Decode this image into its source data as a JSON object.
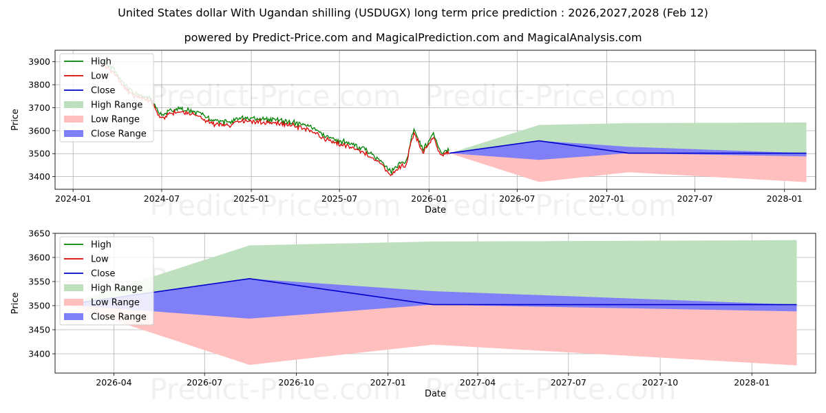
{
  "titles": {
    "main": "United States dollar With Ugandan shilling (USDUGX) long term price prediction : 2026,2027,2028 (Feb 12)",
    "sub": "powered by Predict-Price.com and MagicalPrediction.com and MagicalAnalysis.com"
  },
  "watermark": "Predict-Price.com",
  "colors": {
    "high": "#008000",
    "low": "#dd0000",
    "close": "#0000cc",
    "high_range": "#bfe0bf",
    "low_range": "#ffbfbf",
    "close_range": "#7f7ff8",
    "grid": "#b0b0b0"
  },
  "chart_data": [
    {
      "type": "line",
      "panel": "top",
      "xlabel": "Date",
      "ylabel": "Price",
      "xlim": [
        "2023-11-25",
        "2028-03-05"
      ],
      "ylim": [
        3345,
        3950
      ],
      "x_ticks": [
        "2024-01",
        "2024-07",
        "2025-01",
        "2025-07",
        "2026-01",
        "2026-07",
        "2027-01",
        "2027-07",
        "2028-01"
      ],
      "y_ticks": [
        3400,
        3500,
        3600,
        3700,
        3800,
        3900
      ],
      "grid": true,
      "legend": {
        "position": "top-left",
        "entries": [
          "High",
          "Low",
          "Close",
          "High Range",
          "Low Range",
          "Close Range"
        ]
      },
      "history_anchors": {
        "dates": [
          "2024-03-01",
          "2024-03-25",
          "2024-04-20",
          "2024-05-15",
          "2024-06-10",
          "2024-06-30",
          "2024-08-01",
          "2024-09-01",
          "2024-10-10",
          "2024-11-15",
          "2024-12-20",
          "2025-01-20",
          "2025-03-01",
          "2025-04-15",
          "2025-05-10",
          "2025-06-01",
          "2025-07-01",
          "2025-08-01",
          "2025-09-01",
          "2025-09-25",
          "2025-10-15",
          "2025-11-01",
          "2025-11-15",
          "2025-12-01",
          "2025-12-20",
          "2026-01-10",
          "2026-01-25",
          "2026-02-12"
        ],
        "values": [
          3900,
          3860,
          3780,
          3750,
          3730,
          3660,
          3690,
          3680,
          3640,
          3630,
          3650,
          3645,
          3640,
          3620,
          3600,
          3570,
          3550,
          3530,
          3500,
          3460,
          3410,
          3450,
          3460,
          3600,
          3510,
          3580,
          3500,
          3510
        ]
      },
      "forecast": {
        "dates": [
          "2026-02-12",
          "2026-08-15",
          "2027-02-15",
          "2028-02-15"
        ],
        "close": [
          3502,
          3556,
          3502,
          3502
        ],
        "high_range": [
          3502,
          3625,
          3633,
          3636
        ],
        "low_range": [
          3502,
          3377,
          3419,
          3376
        ],
        "close_range_upper": [
          3502,
          3556,
          3530,
          3502
        ],
        "close_range_lower": [
          3502,
          3473,
          3502,
          3488
        ]
      }
    },
    {
      "type": "line",
      "panel": "bottom",
      "xlabel": "Date",
      "ylabel": "Price",
      "xlim": [
        "2026-02-01",
        "2028-03-05"
      ],
      "ylim": [
        3360,
        3650
      ],
      "x_ticks": [
        "2026-04",
        "2026-07",
        "2026-10",
        "2027-01",
        "2027-04",
        "2027-07",
        "2027-10",
        "2028-01"
      ],
      "y_ticks": [
        3400,
        3450,
        3500,
        3550,
        3600,
        3650
      ],
      "grid": true,
      "legend": {
        "position": "top-left",
        "entries": [
          "High",
          "Low",
          "Close",
          "High Range",
          "Low Range",
          "Close Range"
        ]
      },
      "forecast": {
        "dates": [
          "2026-02-12",
          "2026-08-15",
          "2027-02-15",
          "2028-02-15"
        ],
        "close": [
          3502,
          3556,
          3502,
          3502
        ],
        "high_range": [
          3502,
          3625,
          3633,
          3636
        ],
        "low_range": [
          3502,
          3377,
          3419,
          3376
        ],
        "close_range_upper": [
          3502,
          3556,
          3530,
          3502
        ],
        "close_range_lower": [
          3502,
          3473,
          3502,
          3488
        ]
      }
    }
  ]
}
